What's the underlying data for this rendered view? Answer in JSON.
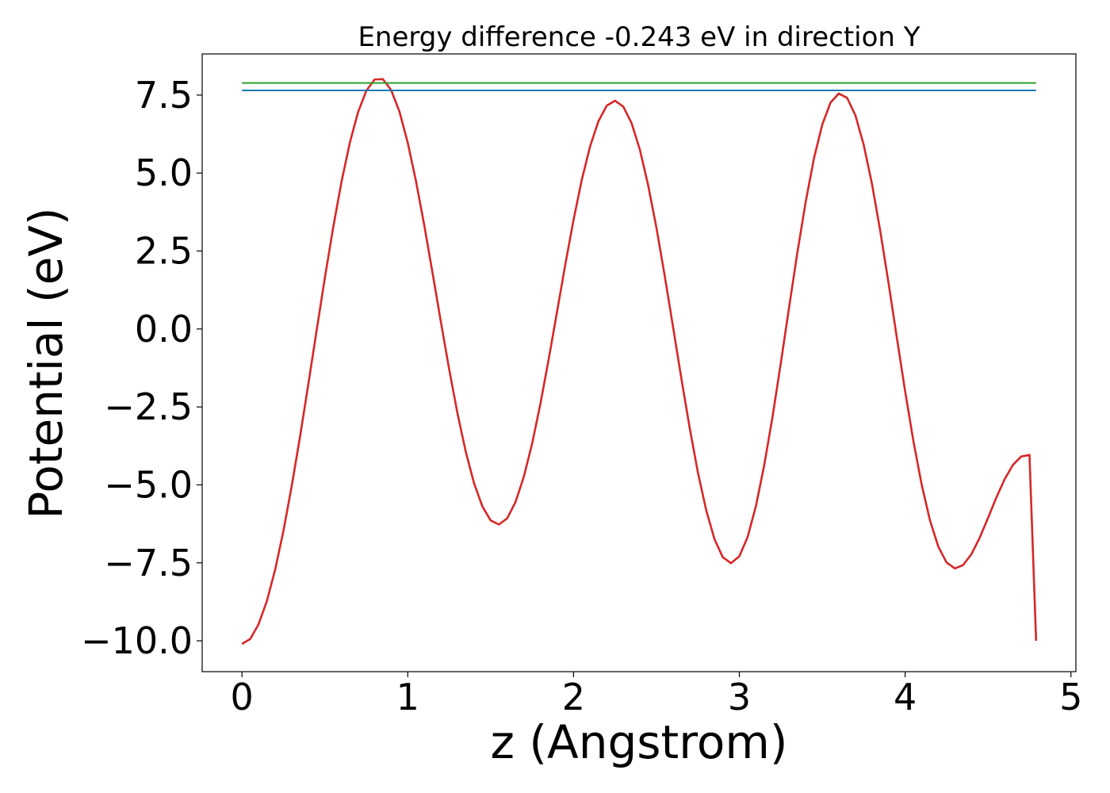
{
  "chart_data": {
    "type": "line",
    "title": "Energy difference -0.243 eV in direction Y",
    "xlabel": "z (Angstrom)",
    "ylabel": "Potential (eV)",
    "xlim": [
      -0.24,
      5.03
    ],
    "ylim": [
      -10.99,
      8.82
    ],
    "xticks": [
      0,
      1,
      2,
      3,
      4,
      5
    ],
    "xtick_labels": [
      "0",
      "1",
      "2",
      "3",
      "4",
      "5"
    ],
    "yticks": [
      -10.0,
      -7.5,
      -5.0,
      -2.5,
      0.0,
      2.5,
      5.0,
      7.5
    ],
    "ytick_labels": [
      "−10.0",
      "−7.5",
      "−5.0",
      "−2.5",
      "0.0",
      "2.5",
      "5.0",
      "7.5"
    ],
    "grid": false,
    "series": [
      {
        "color": "#d62728",
        "x": [
          0.0,
          0.05,
          0.1,
          0.15,
          0.2,
          0.25,
          0.3,
          0.35,
          0.4,
          0.45,
          0.5,
          0.55,
          0.6,
          0.65,
          0.7,
          0.75,
          0.8,
          0.85,
          0.9,
          0.95,
          1.0,
          1.05,
          1.1,
          1.15,
          1.2,
          1.25,
          1.3,
          1.35,
          1.4,
          1.45,
          1.5,
          1.55,
          1.6,
          1.65,
          1.7,
          1.75,
          1.8,
          1.85,
          1.9,
          1.95,
          2.0,
          2.05,
          2.1,
          2.15,
          2.2,
          2.25,
          2.3,
          2.35,
          2.4,
          2.45,
          2.5,
          2.55,
          2.6,
          2.65,
          2.7,
          2.75,
          2.8,
          2.85,
          2.9,
          2.95,
          3.0,
          3.05,
          3.1,
          3.15,
          3.2,
          3.25,
          3.3,
          3.35,
          3.4,
          3.45,
          3.5,
          3.55,
          3.6,
          3.65,
          3.7,
          3.75,
          3.8,
          3.85,
          3.9,
          3.95,
          4.0,
          4.05,
          4.1,
          4.15,
          4.2,
          4.25,
          4.3,
          4.35,
          4.4,
          4.45,
          4.5,
          4.55,
          4.6,
          4.65,
          4.7,
          4.75,
          4.79
        ],
        "y": [
          -10.1,
          -9.94,
          -9.47,
          -8.73,
          -7.72,
          -6.48,
          -5.04,
          -3.46,
          -1.78,
          -0.06,
          1.64,
          3.25,
          4.71,
          5.96,
          6.95,
          7.64,
          8.0,
          8.01,
          7.66,
          6.97,
          5.97,
          4.73,
          3.31,
          1.78,
          0.22,
          -1.3,
          -2.71,
          -3.94,
          -4.95,
          -5.69,
          -6.14,
          -6.27,
          -6.07,
          -5.55,
          -4.74,
          -3.68,
          -2.4,
          -0.97,
          0.54,
          2.06,
          3.5,
          4.79,
          5.86,
          6.66,
          7.16,
          7.32,
          7.13,
          6.6,
          5.75,
          4.61,
          3.24,
          1.7,
          0.07,
          -1.58,
          -3.16,
          -4.6,
          -5.81,
          -6.74,
          -7.32,
          -7.51,
          -7.29,
          -6.67,
          -5.68,
          -4.37,
          -2.82,
          -1.1,
          0.69,
          2.45,
          4.07,
          5.47,
          6.55,
          7.26,
          7.55,
          7.41,
          6.85,
          5.91,
          4.65,
          3.14,
          1.47,
          -0.28,
          -2.0,
          -3.6,
          -5.0,
          -6.14,
          -6.98,
          -7.49,
          -7.68,
          -7.57,
          -7.22,
          -6.69,
          -6.06,
          -5.41,
          -4.82,
          -4.36,
          -4.09,
          -4.04,
          -10.0
        ]
      },
      {
        "color": "#1f77b4",
        "x": [
          0.0,
          4.79
        ],
        "y": [
          7.65,
          7.65
        ]
      },
      {
        "color": "#2ca02c",
        "x": [
          0.0,
          4.79
        ],
        "y": [
          7.89,
          7.89
        ]
      }
    ]
  }
}
